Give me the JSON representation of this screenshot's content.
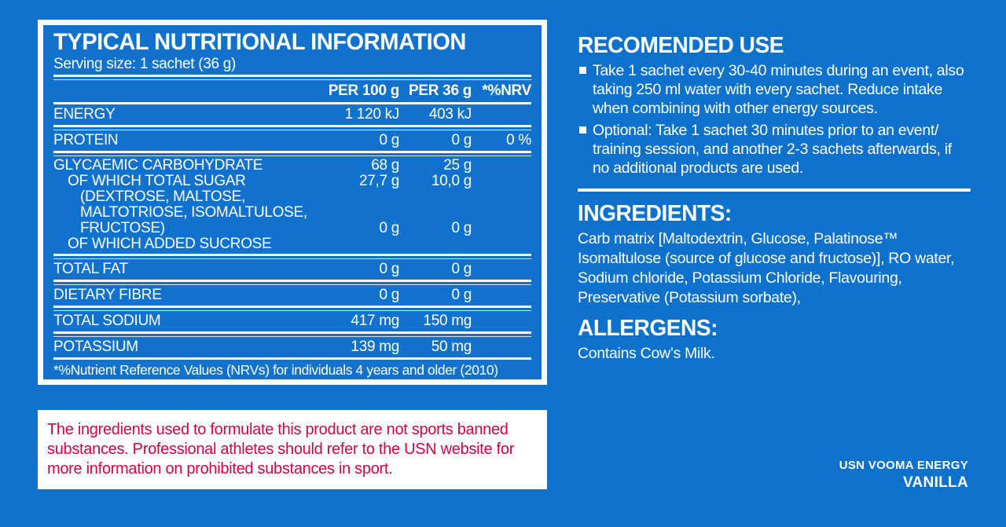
{
  "page": {
    "background_color": "#0E71CC",
    "text_color": "#FFFFFF",
    "warning_color": "#D50340"
  },
  "nutrition_panel": {
    "title": "TYPICAL NUTRITIONAL INFORMATION",
    "serving_size": "Serving size: 1 sachet (36 g)",
    "columns": {
      "per100": "PER 100 g",
      "per36": "PER 36 g",
      "nrv": "*%NRV"
    },
    "lines": [
      {
        "label": "ENERGY",
        "per100": "1 120 kJ",
        "per36": "403 kJ",
        "nrv": ""
      },
      {
        "label": "PROTEIN",
        "per100": "0 g",
        "per36": "0 g",
        "nrv": "0 %"
      },
      {
        "label": "GLYCAEMIC CARBOHYDRATE",
        "per100": "68 g",
        "per36": "25 g",
        "nrv": ""
      },
      {
        "label": "OF WHICH TOTAL SUGAR",
        "per100": "27,7 g",
        "per36": "10,0 g",
        "nrv": ""
      },
      {
        "label": "(DEXTROSE, MALTOSE,",
        "per100": "",
        "per36": "",
        "nrv": ""
      },
      {
        "label": "MALTOTRIOSE, ISOMALTULOSE,",
        "per100": "",
        "per36": "",
        "nrv": ""
      },
      {
        "label": "FRUCTOSE)",
        "per100": "0 g",
        "per36": "0 g",
        "nrv": ""
      },
      {
        "label": "OF WHICH ADDED SUCROSE",
        "per100": "",
        "per36": "",
        "nrv": ""
      },
      {
        "label": "TOTAL FAT",
        "per100": "0 g",
        "per36": "0 g",
        "nrv": ""
      },
      {
        "label": "DIETARY FIBRE",
        "per100": "0 g",
        "per36": "0 g",
        "nrv": ""
      },
      {
        "label": "TOTAL SODIUM",
        "per100": "417 mg",
        "per36": "150 mg",
        "nrv": ""
      },
      {
        "label": "POTASSIUM",
        "per100": "139 mg",
        "per36": "50 mg",
        "nrv": ""
      }
    ],
    "footnote": "*%Nutrient Reference Values (NRVs) for individuals 4 years and older (2010)"
  },
  "recommended_use": {
    "title": "RECOMENDED USE",
    "bullets": [
      "Take 1 sachet every 30-40 minutes during an event, also taking 250 ml water with every sachet. Reduce intake when combining with other energy sources.",
      "Optional: Take 1 sachet 30 minutes prior to an event/ training session, and another 2-3 sachets afterwards, if no additional products are used."
    ]
  },
  "ingredients": {
    "title": "INGREDIENTS:",
    "text": "Carb matrix [Maltodextrin, Glucose, Palatinose™ Isomaltulose (source of glucose and fructose)], RO water, Sodium chloride, Potassium Chloride, Flavouring, Preservative (Potassium sorbate),"
  },
  "allergens": {
    "title": "ALLERGENS:",
    "text": "Contains Cow’s Milk."
  },
  "disclaimer": {
    "text": "The ingredients used to formulate this product are not sports banned substances. Professional athletes should refer to the USN website for more information on prohibited substances in sport."
  },
  "brand": {
    "product": "USN VOOMA ENERGY",
    "flavour": "VANILLA"
  }
}
